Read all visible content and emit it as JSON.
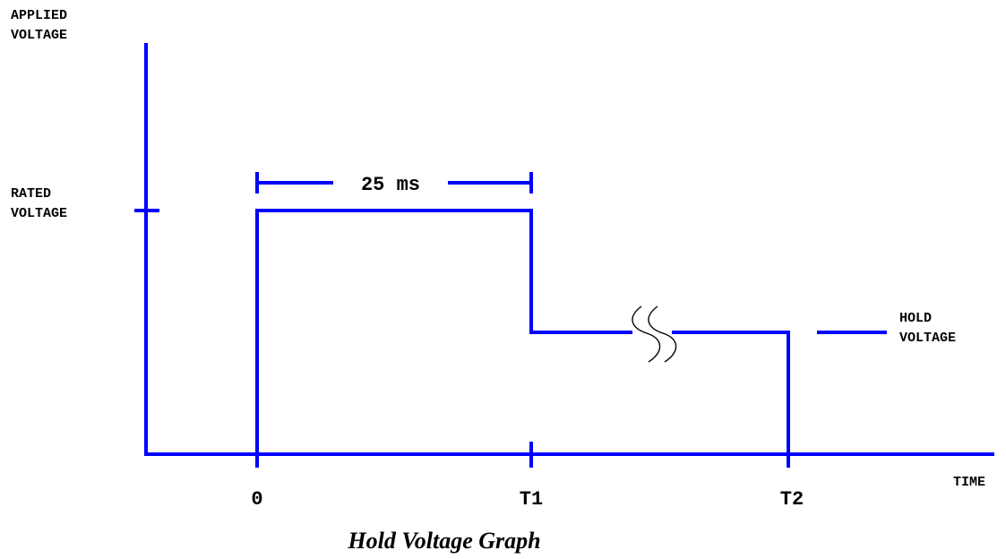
{
  "labels": {
    "y_axis": [
      "APPLIED",
      "VOLTAGE"
    ],
    "rated": [
      "RATED",
      "VOLTAGE"
    ],
    "hold": [
      "HOLD",
      "VOLTAGE"
    ],
    "x_axis": "TIME",
    "tick_0": "0",
    "tick_t1": "T1",
    "tick_t2": "T2",
    "duration": "25 ms",
    "caption": "Hold Voltage Graph"
  },
  "colors": {
    "waveform": "#0000ff",
    "text": "#000000",
    "background": "#ffffff"
  }
}
